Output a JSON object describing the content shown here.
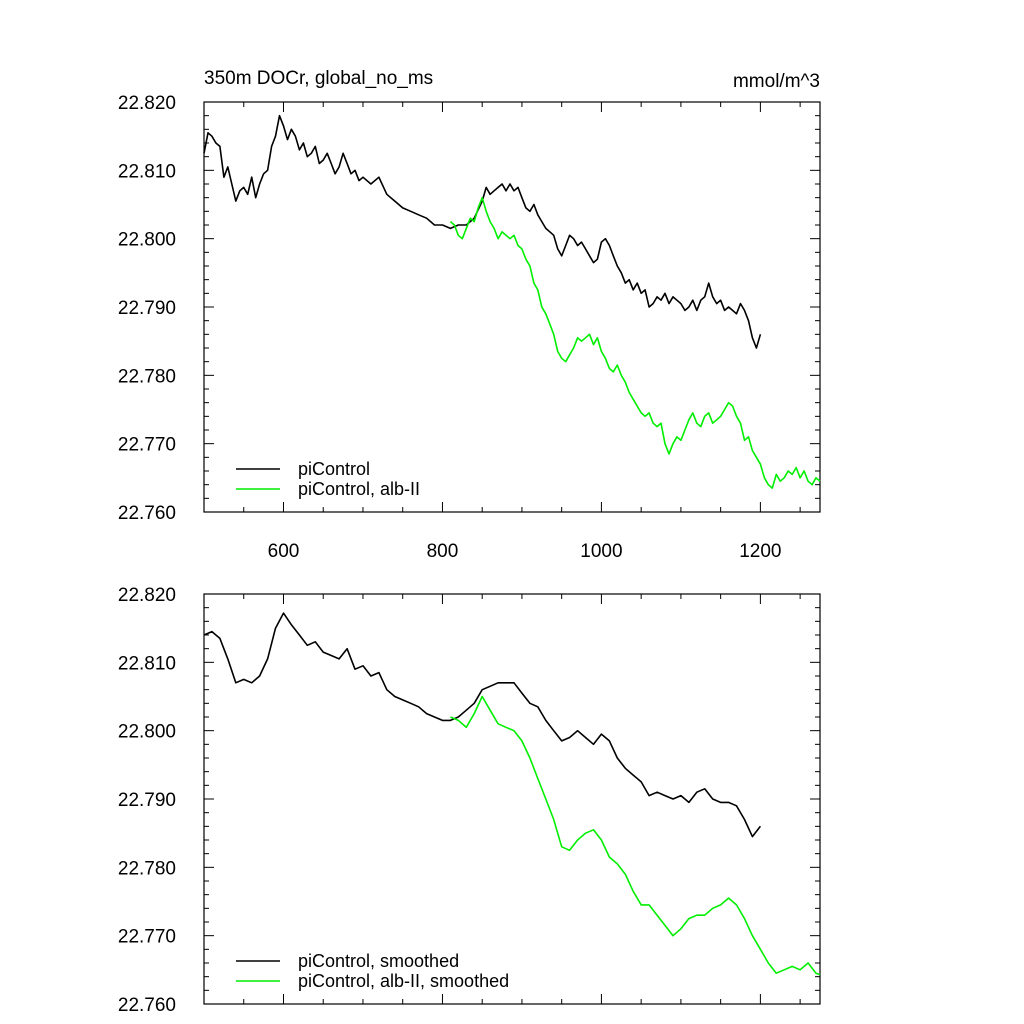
{
  "figure": {
    "left_string": "350m DOCr, global_no_ms",
    "right_string": "mmol/m^3"
  },
  "colors": {
    "control": "#000000",
    "experiment": "#00ee00",
    "axis": "#000000"
  },
  "chart_data": [
    {
      "type": "line",
      "title": "350m DOCr, global_no_ms",
      "units": "mmol/m^3",
      "xlim": [
        500,
        1275
      ],
      "ylim": [
        22.76,
        22.82
      ],
      "x_ticks": [
        600,
        800,
        1000,
        1200
      ],
      "x_tick_labels": [
        "600",
        "800",
        "1000",
        "1200"
      ],
      "y_ticks": [
        22.76,
        22.77,
        22.78,
        22.79,
        22.8,
        22.81,
        22.82
      ],
      "y_tick_labels": [
        "22.760",
        "22.770",
        "22.780",
        "22.790",
        "22.800",
        "22.810",
        "22.820"
      ],
      "legend_location": "bottom-left",
      "series": [
        {
          "name": "piControl",
          "color": "#000000",
          "x": [
            500,
            505,
            510,
            515,
            520,
            525,
            530,
            535,
            540,
            545,
            550,
            555,
            560,
            565,
            570,
            575,
            580,
            585,
            590,
            595,
            600,
            605,
            610,
            615,
            620,
            625,
            630,
            635,
            640,
            645,
            650,
            655,
            660,
            665,
            670,
            675,
            680,
            685,
            690,
            695,
            700,
            710,
            720,
            730,
            740,
            750,
            760,
            770,
            780,
            790,
            800,
            810,
            820,
            830,
            840,
            850,
            855,
            860,
            865,
            870,
            875,
            880,
            885,
            890,
            895,
            900,
            905,
            910,
            915,
            920,
            925,
            930,
            935,
            940,
            945,
            950,
            955,
            960,
            965,
            970,
            975,
            980,
            985,
            990,
            995,
            1000,
            1005,
            1010,
            1015,
            1020,
            1025,
            1030,
            1035,
            1040,
            1045,
            1050,
            1055,
            1060,
            1065,
            1070,
            1075,
            1080,
            1085,
            1090,
            1095,
            1100,
            1105,
            1110,
            1115,
            1120,
            1125,
            1130,
            1135,
            1140,
            1145,
            1150,
            1155,
            1160,
            1165,
            1170,
            1175,
            1180,
            1185,
            1190,
            1195,
            1200
          ],
          "y": [
            22.8125,
            22.8155,
            22.815,
            22.814,
            22.8135,
            22.809,
            22.8105,
            22.808,
            22.8055,
            22.807,
            22.8075,
            22.8065,
            22.809,
            22.806,
            22.808,
            22.8095,
            22.81,
            22.8135,
            22.815,
            22.818,
            22.8165,
            22.8145,
            22.816,
            22.815,
            22.813,
            22.814,
            22.812,
            22.8125,
            22.8135,
            22.811,
            22.8115,
            22.8125,
            22.811,
            22.8095,
            22.8105,
            22.8125,
            22.811,
            22.8095,
            22.81,
            22.8085,
            22.809,
            22.808,
            22.809,
            22.8065,
            22.8055,
            22.8045,
            22.804,
            22.8035,
            22.803,
            22.802,
            22.802,
            22.8015,
            22.802,
            22.802,
            22.803,
            22.8055,
            22.8075,
            22.8065,
            22.807,
            22.8075,
            22.808,
            22.807,
            22.808,
            22.807,
            22.8075,
            22.806,
            22.8045,
            22.804,
            22.805,
            22.8035,
            22.8025,
            22.8015,
            22.801,
            22.8005,
            22.7985,
            22.7975,
            22.799,
            22.8005,
            22.8,
            22.799,
            22.7995,
            22.7985,
            22.7975,
            22.7965,
            22.797,
            22.7995,
            22.8,
            22.799,
            22.7975,
            22.796,
            22.795,
            22.7935,
            22.794,
            22.7925,
            22.7935,
            22.792,
            22.7925,
            22.79,
            22.7905,
            22.7915,
            22.791,
            22.792,
            22.7905,
            22.7915,
            22.791,
            22.7905,
            22.7895,
            22.79,
            22.791,
            22.7895,
            22.791,
            22.7915,
            22.7935,
            22.7915,
            22.7905,
            22.791,
            22.7895,
            22.79,
            22.7895,
            22.789,
            22.7905,
            22.7895,
            22.788,
            22.7855,
            22.784,
            22.786
          ]
        },
        {
          "name": "piControl, alb-II",
          "color": "#00ee00",
          "x": [
            810,
            815,
            820,
            825,
            830,
            835,
            840,
            845,
            850,
            855,
            860,
            865,
            870,
            875,
            880,
            885,
            890,
            895,
            900,
            905,
            910,
            915,
            920,
            925,
            930,
            935,
            940,
            945,
            950,
            955,
            960,
            965,
            970,
            975,
            980,
            985,
            990,
            995,
            1000,
            1005,
            1010,
            1015,
            1020,
            1025,
            1030,
            1035,
            1040,
            1045,
            1050,
            1055,
            1060,
            1065,
            1070,
            1075,
            1080,
            1085,
            1090,
            1095,
            1100,
            1105,
            1110,
            1115,
            1120,
            1125,
            1130,
            1135,
            1140,
            1145,
            1150,
            1155,
            1160,
            1165,
            1170,
            1175,
            1180,
            1185,
            1190,
            1195,
            1200,
            1205,
            1210,
            1215,
            1220,
            1225,
            1230,
            1235,
            1240,
            1245,
            1250,
            1255,
            1260,
            1265,
            1270,
            1275
          ],
          "y": [
            22.8025,
            22.802,
            22.8005,
            22.8,
            22.8015,
            22.803,
            22.8025,
            22.8045,
            22.806,
            22.804,
            22.8025,
            22.8015,
            22.8,
            22.801,
            22.8005,
            22.8,
            22.8005,
            22.799,
            22.7985,
            22.797,
            22.796,
            22.7935,
            22.7925,
            22.79,
            22.789,
            22.7875,
            22.786,
            22.7835,
            22.7825,
            22.782,
            22.783,
            22.784,
            22.7855,
            22.785,
            22.7855,
            22.786,
            22.7845,
            22.7855,
            22.7835,
            22.7825,
            22.781,
            22.7805,
            22.7815,
            22.78,
            22.779,
            22.7775,
            22.7765,
            22.7755,
            22.7745,
            22.774,
            22.7745,
            22.773,
            22.7725,
            22.773,
            22.77,
            22.7685,
            22.77,
            22.771,
            22.7705,
            22.772,
            22.7735,
            22.7745,
            22.773,
            22.7725,
            22.774,
            22.7745,
            22.773,
            22.7735,
            22.774,
            22.775,
            22.776,
            22.7755,
            22.774,
            22.773,
            22.7705,
            22.771,
            22.769,
            22.768,
            22.767,
            22.765,
            22.764,
            22.7635,
            22.7655,
            22.7645,
            22.765,
            22.766,
            22.7655,
            22.7665,
            22.765,
            22.766,
            22.7645,
            22.764,
            22.765,
            22.7645
          ]
        }
      ],
      "legend": [
        "piControl",
        "piControl, alb-II"
      ]
    },
    {
      "type": "line",
      "xlim": [
        500,
        1275
      ],
      "ylim": [
        22.76,
        22.82
      ],
      "x_ticks": [
        600,
        800,
        1000,
        1200
      ],
      "y_ticks": [
        22.76,
        22.77,
        22.78,
        22.79,
        22.8,
        22.81,
        22.82
      ],
      "y_tick_labels": [
        "22.760",
        "22.770",
        "22.780",
        "22.790",
        "22.800",
        "22.810",
        "22.820"
      ],
      "legend_location": "bottom-left",
      "series": [
        {
          "name": "piControl, smoothed",
          "color": "#000000",
          "x": [
            500,
            510,
            520,
            530,
            540,
            550,
            560,
            570,
            580,
            590,
            600,
            610,
            620,
            630,
            640,
            650,
            660,
            670,
            680,
            690,
            700,
            710,
            720,
            730,
            740,
            750,
            760,
            770,
            780,
            790,
            800,
            810,
            820,
            830,
            840,
            850,
            860,
            870,
            880,
            890,
            900,
            910,
            920,
            930,
            940,
            950,
            960,
            970,
            980,
            990,
            1000,
            1010,
            1020,
            1030,
            1040,
            1050,
            1060,
            1070,
            1080,
            1090,
            1100,
            1110,
            1120,
            1130,
            1140,
            1150,
            1160,
            1170,
            1180,
            1190,
            1200
          ],
          "y": [
            22.814,
            22.8145,
            22.8135,
            22.8105,
            22.807,
            22.8075,
            22.807,
            22.808,
            22.8105,
            22.815,
            22.8172,
            22.8155,
            22.814,
            22.8125,
            22.813,
            22.8115,
            22.811,
            22.8105,
            22.812,
            22.809,
            22.8095,
            22.808,
            22.8085,
            22.806,
            22.805,
            22.8045,
            22.804,
            22.8035,
            22.8025,
            22.802,
            22.8015,
            22.8015,
            22.802,
            22.803,
            22.804,
            22.806,
            22.8065,
            22.807,
            22.807,
            22.807,
            22.8055,
            22.804,
            22.8035,
            22.8015,
            22.8,
            22.7985,
            22.799,
            22.8,
            22.799,
            22.798,
            22.7995,
            22.7985,
            22.796,
            22.7945,
            22.7935,
            22.7925,
            22.7905,
            22.791,
            22.7905,
            22.79,
            22.7905,
            22.7895,
            22.791,
            22.7915,
            22.79,
            22.7895,
            22.7895,
            22.789,
            22.787,
            22.7845,
            22.786
          ]
        },
        {
          "name": "piControl, alb-II, smoothed",
          "color": "#00ee00",
          "x": [
            810,
            820,
            830,
            840,
            850,
            860,
            870,
            880,
            890,
            900,
            910,
            920,
            930,
            940,
            950,
            960,
            970,
            980,
            990,
            1000,
            1010,
            1020,
            1030,
            1040,
            1050,
            1060,
            1070,
            1080,
            1090,
            1100,
            1110,
            1120,
            1130,
            1140,
            1150,
            1160,
            1170,
            1180,
            1190,
            1200,
            1210,
            1220,
            1230,
            1240,
            1250,
            1260,
            1270,
            1275
          ],
          "y": [
            22.802,
            22.8015,
            22.8005,
            22.8025,
            22.805,
            22.803,
            22.801,
            22.8005,
            22.8,
            22.7985,
            22.796,
            22.793,
            22.79,
            22.787,
            22.783,
            22.7825,
            22.784,
            22.785,
            22.7855,
            22.784,
            22.7815,
            22.7805,
            22.779,
            22.7765,
            22.7745,
            22.7745,
            22.773,
            22.7715,
            22.77,
            22.771,
            22.7725,
            22.773,
            22.773,
            22.774,
            22.7745,
            22.7755,
            22.7745,
            22.7725,
            22.77,
            22.768,
            22.766,
            22.7645,
            22.765,
            22.7655,
            22.765,
            22.766,
            22.7645,
            22.7643
          ]
        }
      ],
      "legend": [
        "piControl, smoothed",
        "piControl, alb-II, smoothed"
      ]
    }
  ]
}
